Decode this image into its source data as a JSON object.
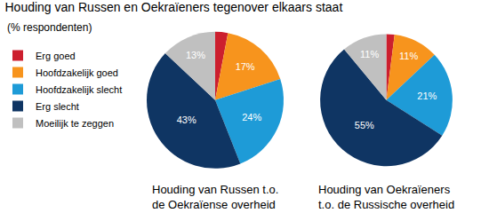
{
  "title": "Houding van Russen en Oekraïeners tegenover elkaars staat",
  "subtitle": "(% respondenten)",
  "legend": "top left",
  "chart_data": [
    {
      "type": "pie",
      "title": "Houding van Russen t.o.\nde Oekraïense overheid",
      "categories": [
        "Erg goed",
        "Hoofdzakelijk goed",
        "Hoofdzakelijk slecht",
        "Erg slecht",
        "Moeilijk te zeggen"
      ],
      "colors": [
        "#cc1f2e",
        "#f7941d",
        "#1e9bd7",
        "#0f3563",
        "#c0c0c0"
      ],
      "values": [
        3,
        17,
        24,
        43,
        13
      ],
      "value_labels": [
        null,
        "17%",
        "24%",
        "43%",
        "13%"
      ],
      "data_labels": true
    },
    {
      "type": "pie",
      "title": "Houding van Oekraïeners\nt.o. de Russische overheid",
      "categories": [
        "Erg goed",
        "Hoofdzakelijk goed",
        "Hoofdzakelijk slecht",
        "Erg slecht",
        "Moeilijk te zeggen"
      ],
      "colors": [
        "#cc1f2e",
        "#f7941d",
        "#1e9bd7",
        "#0f3563",
        "#c0c0c0"
      ],
      "values": [
        2,
        11,
        21,
        55,
        11
      ],
      "value_labels": [
        null,
        "11%",
        "21%",
        "55%",
        "11%"
      ],
      "data_labels": true
    }
  ]
}
